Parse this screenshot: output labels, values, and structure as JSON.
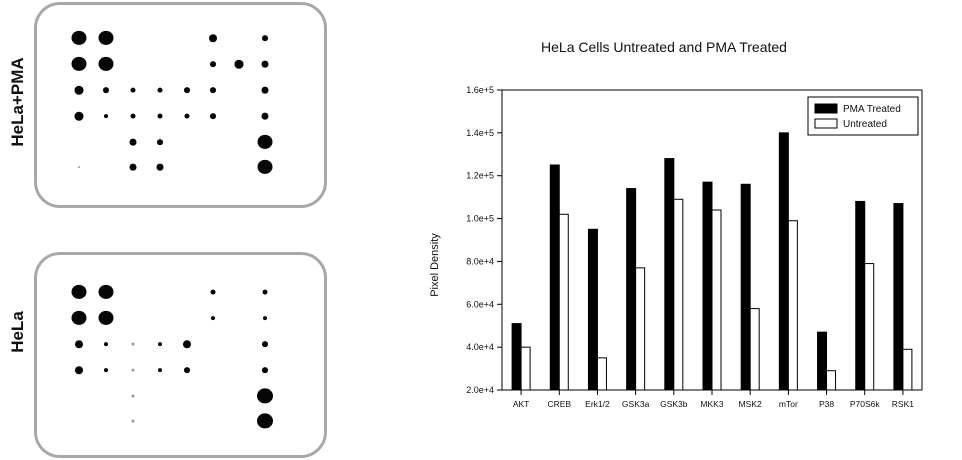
{
  "figure": {
    "array_top_label": "HeLa+PMA",
    "array_bottom_label": "HeLa"
  },
  "chart_data": {
    "type": "bar",
    "title": "HeLa Cells Untreated and PMA Treated",
    "xlabel": "",
    "ylabel": "Pixel Density",
    "categories": [
      "AKT",
      "CREB",
      "Erk1/2",
      "GSK3a",
      "GSK3b",
      "MKK3",
      "MSK2",
      "mTor",
      "P38",
      "P70S6k",
      "RSK1"
    ],
    "series": [
      {
        "name": "PMA Treated",
        "color": "#000000",
        "values": [
          51000,
          125000,
          95000,
          114000,
          128000,
          117000,
          116000,
          140000,
          47000,
          108000,
          107000
        ]
      },
      {
        "name": "Untreated",
        "color": "#ffffff",
        "values": [
          40000,
          102000,
          35000,
          77000,
          109000,
          104000,
          58000,
          99000,
          29000,
          79000,
          39000
        ]
      }
    ],
    "ylim": [
      20000,
      160000
    ],
    "yticks": [
      20000,
      40000,
      60000,
      80000,
      100000,
      120000,
      140000,
      160000
    ],
    "ytick_labels": [
      "2.0e+4",
      "4.0e+4",
      "6.0e+4",
      "8.0e+4",
      "1.0e+5",
      "1.2e+5",
      "1.4e+5",
      "1.6e+5"
    ],
    "legend_position": "top-right",
    "grid": false
  }
}
